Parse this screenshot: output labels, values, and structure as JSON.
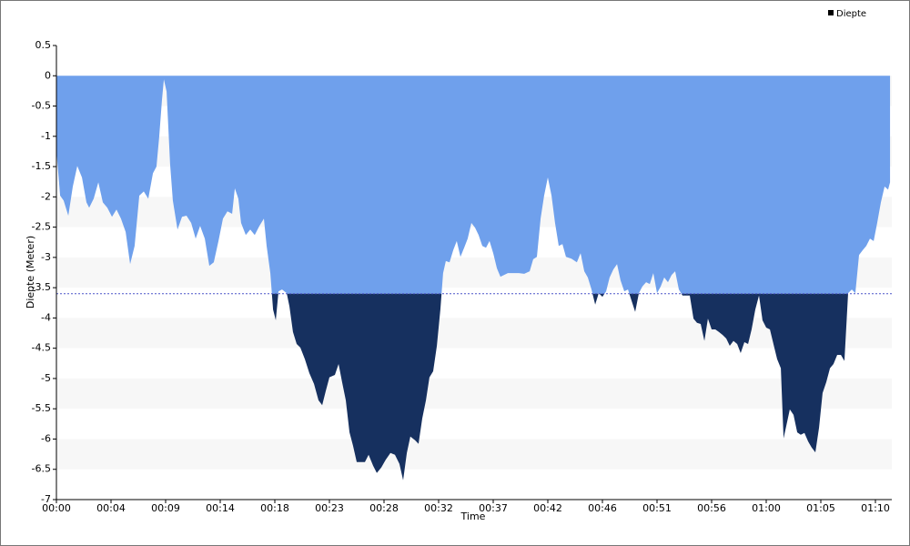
{
  "chart_data": {
    "type": "area",
    "y_label": "Diepte (Meter)",
    "x_label": "Time",
    "threshold": -3.6,
    "threshold_color": "#16305f",
    "legend": "top-right",
    "grid": "bands",
    "xlim": [
      0,
      4284
    ],
    "ylim": [
      -7,
      0.5
    ],
    "xticks": [
      {
        "value": 0,
        "label": "00:00"
      },
      {
        "value": 280,
        "label": "00:04"
      },
      {
        "value": 560,
        "label": "00:09"
      },
      {
        "value": 840,
        "label": "00:14"
      },
      {
        "value": 1120,
        "label": "00:18"
      },
      {
        "value": 1400,
        "label": "00:23"
      },
      {
        "value": 1680,
        "label": "00:28"
      },
      {
        "value": 1960,
        "label": "00:32"
      },
      {
        "value": 2240,
        "label": "00:37"
      },
      {
        "value": 2520,
        "label": "00:42"
      },
      {
        "value": 2800,
        "label": "00:46"
      },
      {
        "value": 3080,
        "label": "00:51"
      },
      {
        "value": 3360,
        "label": "00:56"
      },
      {
        "value": 3640,
        "label": "01:00"
      },
      {
        "value": 3920,
        "label": "01:05"
      },
      {
        "value": 4200,
        "label": "01:10"
      }
    ],
    "yticks": [
      0.5,
      0,
      -0.5,
      -1,
      -1.5,
      -2,
      -2.5,
      -3,
      -3.5,
      -4,
      -4.5,
      -5,
      -5.5,
      -6,
      -6.5,
      -7
    ],
    "x": [
      0,
      19,
      37,
      61,
      84,
      107,
      131,
      154,
      168,
      191,
      215,
      238,
      261,
      285,
      308,
      331,
      355,
      378,
      401,
      425,
      448,
      471,
      495,
      513,
      527,
      541,
      551,
      565,
      583,
      597,
      621,
      644,
      667,
      691,
      714,
      737,
      761,
      784,
      807,
      831,
      854,
      877,
      901,
      915,
      933,
      947,
      971,
      994,
      1017,
      1041,
      1064,
      1078,
      1097,
      1111,
      1125,
      1139,
      1157,
      1181,
      1195,
      1213,
      1232,
      1251,
      1274,
      1297,
      1321,
      1344,
      1363,
      1381,
      1400,
      1428,
      1447,
      1465,
      1484,
      1503,
      1521,
      1540,
      1559,
      1582,
      1601,
      1624,
      1643,
      1666,
      1689,
      1713,
      1736,
      1759,
      1778,
      1797,
      1815,
      1839,
      1857,
      1876,
      1895,
      1913,
      1932,
      1951,
      1969,
      1983,
      1997,
      2016,
      2035,
      2053,
      2072,
      2091,
      2109,
      2128,
      2147,
      2165,
      2184,
      2203,
      2221,
      2240,
      2259,
      2277,
      2296,
      2315,
      2343,
      2371,
      2399,
      2427,
      2445,
      2464,
      2483,
      2501,
      2520,
      2539,
      2557,
      2576,
      2595,
      2613,
      2641,
      2669,
      2688,
      2707,
      2725,
      2744,
      2763,
      2781,
      2800,
      2819,
      2837,
      2856,
      2875,
      2893,
      2912,
      2931,
      2949,
      2968,
      2987,
      3005,
      3024,
      3043,
      3061,
      3080,
      3099,
      3117,
      3136,
      3155,
      3173,
      3192,
      3211,
      3229,
      3248,
      3267,
      3285,
      3304,
      3323,
      3341,
      3360,
      3379,
      3397,
      3416,
      3435,
      3453,
      3472,
      3491,
      3509,
      3528,
      3547,
      3565,
      3584,
      3603,
      3621,
      3640,
      3659,
      3677,
      3696,
      3715,
      3729,
      3743,
      3761,
      3780,
      3799,
      3817,
      3836,
      3855,
      3873,
      3892,
      3911,
      3929,
      3948,
      3967,
      3985,
      4004,
      4023,
      4041,
      4060,
      4079,
      4097,
      4116,
      4135,
      4153,
      4172,
      4191,
      4209,
      4228,
      4247,
      4265,
      4275
    ],
    "series": [
      {
        "name": "Diepte",
        "color": "#6fa0ec",
        "legend_color": "#000000",
        "values": [
          -1.23,
          -1.98,
          -2.06,
          -2.31,
          -1.83,
          -1.49,
          -1.68,
          -2.09,
          -2.18,
          -2.03,
          -1.76,
          -2.09,
          -2.18,
          -2.33,
          -2.21,
          -2.36,
          -2.58,
          -3.11,
          -2.81,
          -1.98,
          -1.91,
          -2.03,
          -1.61,
          -1.5,
          -1.01,
          -0.41,
          -0.06,
          -0.26,
          -1.46,
          -2.06,
          -2.54,
          -2.33,
          -2.31,
          -2.43,
          -2.69,
          -2.48,
          -2.69,
          -3.14,
          -3.08,
          -2.73,
          -2.36,
          -2.24,
          -2.28,
          -1.86,
          -2.03,
          -2.43,
          -2.63,
          -2.54,
          -2.63,
          -2.48,
          -2.36,
          -2.81,
          -3.26,
          -3.86,
          -4.04,
          -3.56,
          -3.53,
          -3.59,
          -3.81,
          -4.23,
          -4.43,
          -4.49,
          -4.68,
          -4.91,
          -5.09,
          -5.36,
          -5.44,
          -5.21,
          -4.98,
          -4.94,
          -4.76,
          -5.06,
          -5.36,
          -5.89,
          -6.11,
          -6.38,
          -6.38,
          -6.38,
          -6.26,
          -6.44,
          -6.56,
          -6.47,
          -6.34,
          -6.23,
          -6.26,
          -6.41,
          -6.68,
          -6.23,
          -5.96,
          -6.02,
          -6.08,
          -5.66,
          -5.36,
          -4.98,
          -4.88,
          -4.46,
          -3.86,
          -3.26,
          -3.06,
          -3.08,
          -2.88,
          -2.73,
          -2.99,
          -2.84,
          -2.69,
          -2.43,
          -2.51,
          -2.63,
          -2.81,
          -2.84,
          -2.73,
          -2.93,
          -3.18,
          -3.32,
          -3.29,
          -3.26,
          -3.26,
          -3.26,
          -3.27,
          -3.23,
          -3.03,
          -2.99,
          -2.36,
          -1.98,
          -1.68,
          -1.98,
          -2.43,
          -2.81,
          -2.78,
          -2.99,
          -3.02,
          -3.08,
          -2.93,
          -3.23,
          -3.33,
          -3.53,
          -3.78,
          -3.59,
          -3.65,
          -3.56,
          -3.33,
          -3.2,
          -3.11,
          -3.38,
          -3.56,
          -3.53,
          -3.71,
          -3.9,
          -3.59,
          -3.48,
          -3.41,
          -3.44,
          -3.26,
          -3.59,
          -3.48,
          -3.33,
          -3.41,
          -3.29,
          -3.23,
          -3.53,
          -3.63,
          -3.63,
          -3.63,
          -4.01,
          -4.08,
          -4.1,
          -4.38,
          -4.01,
          -4.19,
          -4.19,
          -4.23,
          -4.28,
          -4.34,
          -4.46,
          -4.38,
          -4.43,
          -4.58,
          -4.4,
          -4.43,
          -4.19,
          -3.86,
          -3.63,
          -4.04,
          -4.16,
          -4.19,
          -4.43,
          -4.68,
          -4.83,
          -5.99,
          -5.78,
          -5.51,
          -5.6,
          -5.89,
          -5.93,
          -5.9,
          -6.04,
          -6.14,
          -6.22,
          -5.81,
          -5.24,
          -5.06,
          -4.83,
          -4.76,
          -4.61,
          -4.61,
          -4.71,
          -3.59,
          -3.53,
          -3.59,
          -2.96,
          -2.88,
          -2.81,
          -2.69,
          -2.73,
          -2.43,
          -2.09,
          -1.83,
          -1.88,
          -1.76
        ]
      }
    ]
  }
}
